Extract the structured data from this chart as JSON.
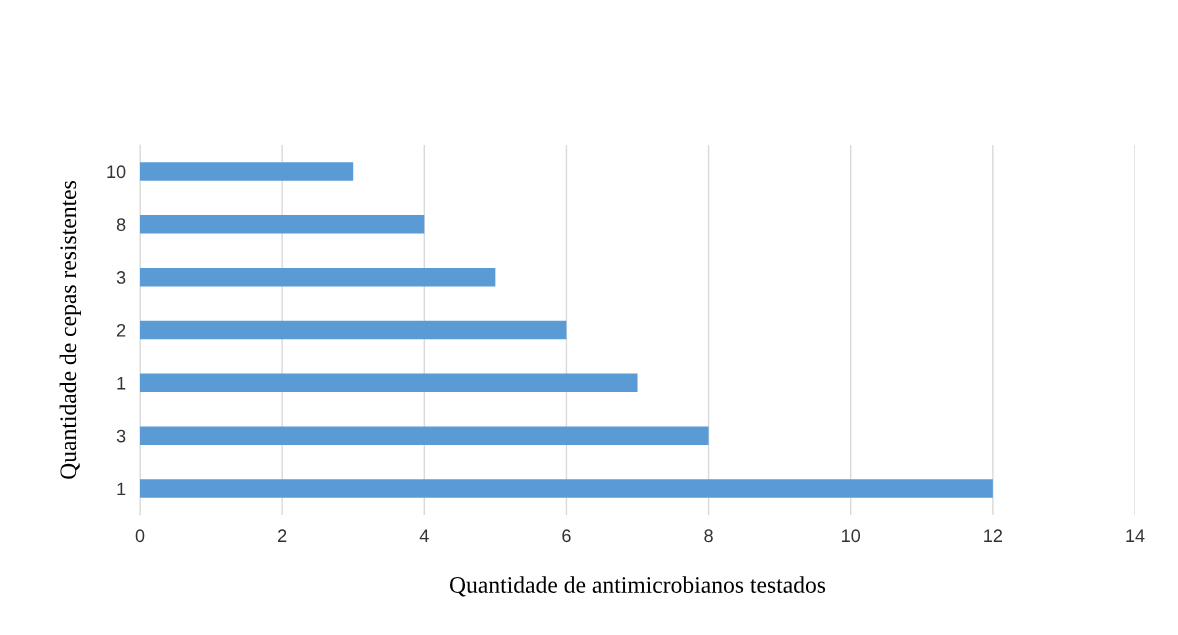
{
  "chart_data": {
    "type": "bar",
    "orientation": "horizontal",
    "xlabel": "Quantidade de antimicrobianos testados",
    "ylabel": "Quantidade de cepas resistentes",
    "categories": [
      "10",
      "8",
      "3",
      "2",
      "1",
      "3",
      "1"
    ],
    "values": [
      3,
      4,
      5,
      6,
      7,
      8,
      12
    ],
    "color": "#5b9bd5",
    "xlim": [
      0,
      14
    ],
    "xticks": [
      0,
      2,
      4,
      6,
      8,
      10,
      12,
      14
    ],
    "grid": "x"
  }
}
